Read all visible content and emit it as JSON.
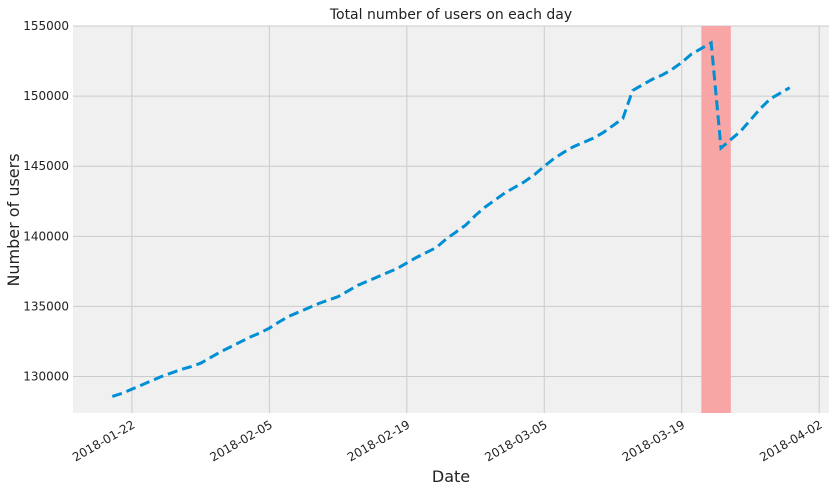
{
  "chart_data": {
    "type": "line",
    "title": "Total number of users on each day",
    "x_label": "Date",
    "y_label": "Number of users",
    "x": [
      "2018-01-20",
      "2018-01-21",
      "2018-01-22",
      "2018-01-23",
      "2018-01-24",
      "2018-01-25",
      "2018-01-26",
      "2018-01-27",
      "2018-01-28",
      "2018-01-29",
      "2018-01-30",
      "2018-01-31",
      "2018-02-01",
      "2018-02-02",
      "2018-02-03",
      "2018-02-04",
      "2018-02-05",
      "2018-02-06",
      "2018-02-07",
      "2018-02-08",
      "2018-02-09",
      "2018-02-10",
      "2018-02-11",
      "2018-02-12",
      "2018-02-13",
      "2018-02-14",
      "2018-02-15",
      "2018-02-16",
      "2018-02-17",
      "2018-02-18",
      "2018-02-19",
      "2018-02-20",
      "2018-02-21",
      "2018-02-22",
      "2018-02-23",
      "2018-02-24",
      "2018-02-25",
      "2018-02-26",
      "2018-02-27",
      "2018-02-28",
      "2018-03-01",
      "2018-03-02",
      "2018-03-03",
      "2018-03-04",
      "2018-03-05",
      "2018-03-06",
      "2018-03-07",
      "2018-03-08",
      "2018-03-09",
      "2018-03-10",
      "2018-03-11",
      "2018-03-12",
      "2018-03-13",
      "2018-03-14",
      "2018-03-15",
      "2018-03-16",
      "2018-03-17",
      "2018-03-18",
      "2018-03-19",
      "2018-03-20",
      "2018-03-21",
      "2018-03-22",
      "2018-03-23",
      "2018-03-24",
      "2018-03-25",
      "2018-03-26",
      "2018-03-27",
      "2018-03-28",
      "2018-03-29",
      "2018-03-30"
    ],
    "series": [
      {
        "color": "#008fd5",
        "line_style": "dashed",
        "values": [
          128580,
          128800,
          129100,
          129400,
          129700,
          130000,
          130250,
          130500,
          130700,
          130950,
          131350,
          131750,
          132100,
          132450,
          132800,
          133100,
          133450,
          133900,
          134300,
          134600,
          134900,
          135200,
          135450,
          135700,
          136100,
          136500,
          136800,
          137100,
          137400,
          137700,
          138100,
          138500,
          138850,
          139200,
          139800,
          140300,
          140800,
          141500,
          142100,
          142600,
          143100,
          143500,
          143900,
          144400,
          145000,
          145550,
          146000,
          146400,
          146700,
          147000,
          147400,
          147900,
          148400,
          150400,
          150800,
          151200,
          151500,
          151900,
          152400,
          153000,
          153400,
          153800,
          146300,
          146900,
          147500,
          148300,
          149100,
          149800,
          150200,
          150600
        ]
      }
    ],
    "xlim": [
      "2018-01-16",
      "2018-04-03"
    ],
    "xticks": [
      "2018-01-22",
      "2018-02-05",
      "2018-02-19",
      "2018-03-05",
      "2018-03-19",
      "2018-04-02"
    ],
    "ylim": [
      127400,
      155000
    ],
    "yticks": [
      130000,
      135000,
      140000,
      145000,
      150000,
      155000
    ],
    "highlight": {
      "start": "2018-03-21",
      "end": "2018-03-24",
      "color": "#f8a5a5"
    },
    "grid": true
  }
}
